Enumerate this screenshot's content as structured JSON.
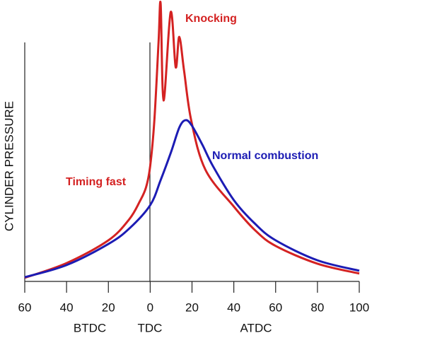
{
  "chart_data": {
    "type": "line",
    "y_label": "CYLINDER PRESSURE",
    "xlim": [
      -60,
      100
    ],
    "xticks": [
      {
        "value": -60,
        "label": "60"
      },
      {
        "value": -40,
        "label": "40"
      },
      {
        "value": -20,
        "label": "20"
      },
      0,
      20,
      40,
      60,
      80,
      100
    ],
    "x_region_labels": [
      "BTDC",
      "TDC",
      "ATDC"
    ],
    "ylim": [
      0,
      100
    ],
    "annotations": [
      "Knocking"
    ],
    "series": [
      {
        "name": "Timing fast",
        "color": "#d42222",
        "x": [
          -60,
          -40,
          -20,
          -10,
          -5,
          -2,
          0,
          2,
          4,
          5,
          6.4,
          9.8,
          12.2,
          13.9,
          16.2,
          19.6,
          26.4,
          40,
          50,
          60,
          80,
          100
        ],
        "values": [
          1.3,
          6.5,
          14.6,
          22.1,
          28.4,
          33.4,
          41,
          57.3,
          85,
          98.7,
          64.3,
          95.7,
          76.1,
          86.9,
          74.9,
          57.3,
          39.7,
          26.6,
          18.3,
          12.6,
          6.3,
          2.8
        ]
      },
      {
        "name": "Normal combustion",
        "color": "#1c1cb4",
        "x": [
          -60,
          -40,
          -20,
          -10,
          0,
          5,
          10,
          14,
          17,
          20,
          25,
          30,
          40,
          50,
          60,
          80,
          100
        ],
        "values": [
          1.5,
          5.8,
          13.3,
          18.8,
          27.1,
          36,
          46,
          54.8,
          57.3,
          55.3,
          48.5,
          41,
          28.9,
          20.6,
          14.6,
          7.5,
          3.8
        ]
      }
    ]
  }
}
